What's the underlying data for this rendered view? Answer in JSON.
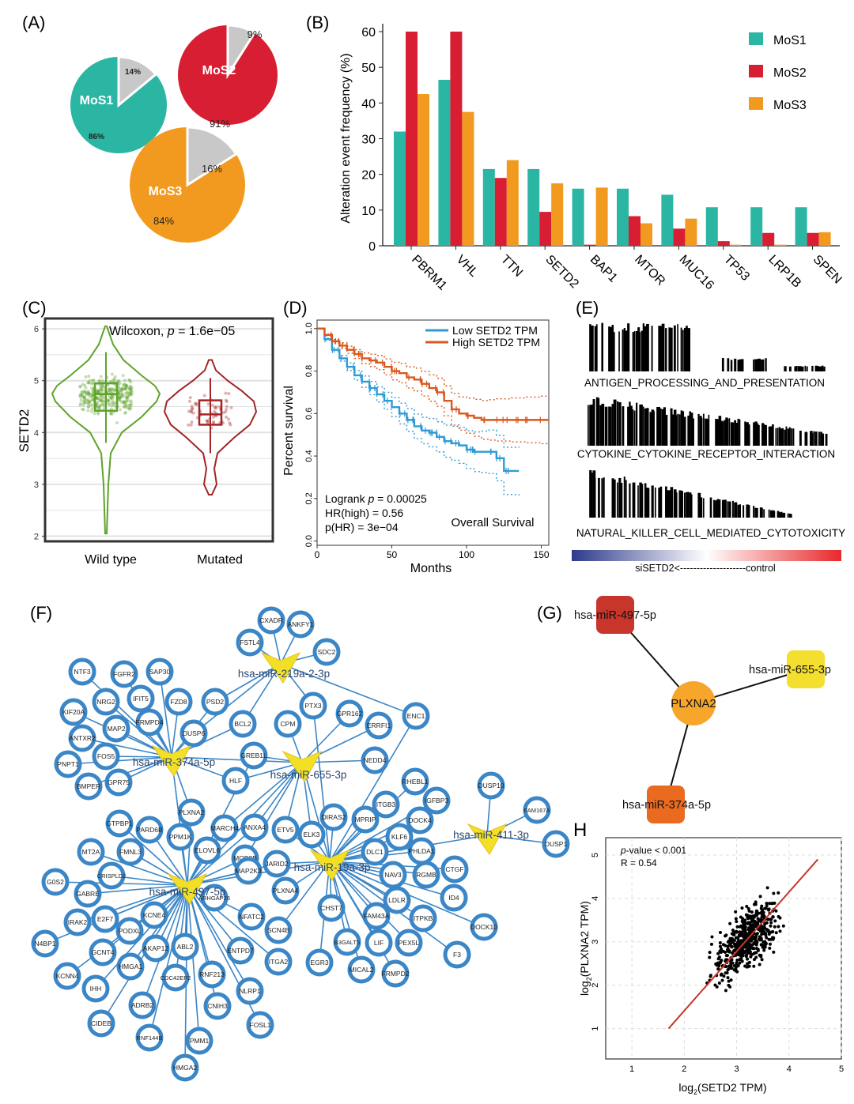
{
  "panels": {
    "a": "(A)",
    "b": "(B)",
    "c": "(C)",
    "d": "(D)",
    "e": "(E)",
    "f": "(F)",
    "g": "(G)",
    "h": "H"
  },
  "colors": {
    "mos1": "#2bb5a3",
    "mos2": "#d81e32",
    "mos3": "#f29a1f",
    "grey": "#c8c8c8",
    "wt": "#5fa32a",
    "mut": "#a22525",
    "low": "#2f9bd5",
    "high": "#d9581f",
    "net": "#3b86c6",
    "hub": "#f2e027",
    "reg": "#c8352b"
  },
  "chart_data": [
    {
      "id": "A",
      "type": "pie",
      "pies": [
        {
          "name": "MoS1",
          "main_pct": "86%",
          "other_pct": "14%",
          "main": 86,
          "other": 14
        },
        {
          "name": "MoS2",
          "main_pct": "91%",
          "other_pct": "9%",
          "main": 91,
          "other": 9
        },
        {
          "name": "MoS3",
          "main_pct": "84%",
          "other_pct": "16%",
          "main": 84,
          "other": 16
        }
      ]
    },
    {
      "id": "B",
      "type": "bar",
      "categories": [
        "PBRM1",
        "VHL",
        "TTN",
        "SETD2",
        "BAP1",
        "MTOR",
        "MUC16",
        "TP53",
        "LRP1B",
        "SPEN"
      ],
      "series": [
        {
          "name": "MoS1",
          "values": [
            32,
            46.5,
            21.5,
            21.5,
            16,
            16,
            14.3,
            10.8,
            10.8,
            10.8
          ]
        },
        {
          "name": "MoS2",
          "values": [
            60,
            60,
            19,
            9.5,
            0.3,
            8.3,
            4.8,
            1.3,
            3.6,
            3.6
          ]
        },
        {
          "name": "MoS3",
          "values": [
            42.5,
            37.5,
            24,
            17.5,
            16.3,
            6.3,
            7.6,
            0.3,
            0.3,
            3.8
          ]
        }
      ],
      "ylabel": "Alteration event frequency (%)",
      "ylim": [
        0,
        62
      ],
      "yticks": [
        "0",
        "10",
        "20",
        "30",
        "40",
        "50",
        "60"
      ]
    },
    {
      "id": "C",
      "type": "violin",
      "groups": [
        "Wild type",
        "Mutated"
      ],
      "ylabel": "SETD2",
      "ylim": [
        1.9,
        6.2
      ],
      "yticks": [
        "2",
        "3",
        "4",
        "5",
        "6"
      ],
      "annotation_prefix": "Wilcoxon, ",
      "annotation_p": "p",
      "annotation_value": " = 1.6e−05",
      "box": [
        {
          "q1": 4.42,
          "median": 4.74,
          "q3": 4.95,
          "low": 3.8,
          "high": 5.55
        },
        {
          "q1": 4.15,
          "median": 4.35,
          "q3": 4.62,
          "low": 3.6,
          "high": 5.05
        }
      ]
    },
    {
      "id": "D",
      "type": "line",
      "xlabel": "Months",
      "ylabel": "Percent survival",
      "xticks": [
        "0",
        "50",
        "100",
        "150"
      ],
      "yticks": [
        "0.0",
        "0.2",
        "0.4",
        "0.6",
        "0.8",
        "1.0"
      ],
      "xlim": [
        0,
        155
      ],
      "ylim": [
        -0.02,
        1.04
      ],
      "legend": [
        "Low SETD2 TPM",
        "High SETD2 TPM"
      ],
      "series": [
        {
          "name": "Low SETD2 TPM",
          "x": [
            0,
            5,
            10,
            15,
            20,
            25,
            30,
            35,
            40,
            45,
            50,
            55,
            60,
            65,
            70,
            75,
            80,
            85,
            90,
            95,
            100,
            105,
            110,
            115,
            120,
            125,
            135
          ],
          "y": [
            1,
            0.95,
            0.9,
            0.86,
            0.82,
            0.78,
            0.75,
            0.72,
            0.69,
            0.66,
            0.63,
            0.6,
            0.57,
            0.54,
            0.52,
            0.51,
            0.49,
            0.47,
            0.46,
            0.45,
            0.43,
            0.42,
            0.42,
            0.42,
            0.39,
            0.33,
            0.33
          ]
        },
        {
          "name": "High SETD2 TPM",
          "x": [
            0,
            5,
            10,
            15,
            20,
            25,
            30,
            35,
            40,
            45,
            50,
            55,
            60,
            65,
            70,
            75,
            80,
            85,
            90,
            95,
            100,
            105,
            110,
            115,
            120,
            130,
            140,
            150,
            155
          ],
          "y": [
            1,
            0.97,
            0.94,
            0.92,
            0.9,
            0.88,
            0.86,
            0.85,
            0.84,
            0.82,
            0.8,
            0.79,
            0.77,
            0.76,
            0.74,
            0.72,
            0.7,
            0.66,
            0.62,
            0.6,
            0.59,
            0.58,
            0.57,
            0.57,
            0.57,
            0.57,
            0.57,
            0.57,
            0.57
          ]
        }
      ],
      "stats": {
        "logrank_prefix": "Logrank ",
        "logrank_p": "p",
        "logrank_value": " = 0.00025",
        "hr": "HR(high) = 0.56",
        "phr": "p(HR) = 3e−04"
      },
      "title": "Overall Survival"
    },
    {
      "id": "E",
      "type": "gsea",
      "pathways": [
        "ANTIGEN_PROCESSING_AND_PRESENTATION",
        "CYTOKINE_CYTOKINE_RECEPTOR_INTERACTION",
        "NATURAL_KILLER_CELL_MEDIATED_CYTOTOXICITY"
      ],
      "scale_label": "siSETD2<--------------------control"
    },
    {
      "id": "F",
      "type": "network",
      "hubs": [
        "hsa-miR-219a-2-3p",
        "hsa-miR-374a-5p",
        "hsa-miR-655-3p",
        "hsa-miR-411-3p",
        "hsa-miR-19a-3p",
        "hsa-miR-497-5p"
      ],
      "genes": [
        "CXADR",
        "ANKFY1",
        "FSTL4",
        "SDC2",
        "NTF3",
        "FGFR2",
        "SAP30",
        "IFIT5",
        "NRG2",
        "FZD8",
        "KIF20A",
        "PSD2",
        "MAP2",
        "FRMPD4",
        "DUSP6",
        "BCL2",
        "PTX3",
        "GPR162",
        "CPM",
        "ERRFI1",
        "ENC1",
        "ANTXR2",
        "FOS5",
        "PNPT1",
        "BMPER",
        "GPR75",
        "GREB1L",
        "NEDD4",
        "HLF",
        "RHEBL1",
        "DUSP10",
        "IGFBP3",
        "ITGB3",
        "FAM167A",
        "PLXNA2",
        "GTPBP1",
        "PARD6B",
        "MARCH4",
        "ANXA4",
        "ETV5",
        "DIRAS2",
        "MPRIP",
        "DOCK4",
        "PPM1K",
        "ELK3",
        "KLF6",
        "MT2A",
        "FMNL3",
        "ELOVL6",
        "MOB3B",
        "JARID2",
        "DLC1",
        "PHLDA1",
        "DUSP1",
        "CRISPLD2",
        "MAP2K3",
        "NAV3",
        "RGMB",
        "CTGF",
        "G0S2",
        "GABRE",
        "PLXNA4",
        "LDLR",
        "ID4",
        "IRAK2",
        "E2F7",
        "KCNE4",
        "ARHGAP26",
        "NFATC2",
        "CHST7",
        "FAM43A",
        "ITPKB",
        "DOCK10",
        "PODXL",
        "SCN4B",
        "N4BP1",
        "GCNT4",
        "AKAP12",
        "ABL2",
        "ENTPD7",
        "ITGA2",
        "EGR3",
        "B3GALT5",
        "LIF",
        "PEX5L",
        "F3",
        "KCNN4",
        "HMGA1",
        "CDC42EP2",
        "RNF213",
        "MICAL2",
        "FRMPD2",
        "IHH",
        "CNIH3",
        "NLRP1",
        "ADRB2",
        "FOSL1",
        "CIDEB",
        "RNF144B",
        "PMM1",
        "HMGA2"
      ]
    },
    {
      "id": "G",
      "type": "network",
      "center": "PLXNA2",
      "mirnas": [
        "hsa-miR-497-5p",
        "hsa-miR-655-3p",
        "hsa-miR-374a-5p"
      ]
    },
    {
      "id": "H",
      "type": "scatter",
      "xlabel_pre": "log",
      "xlabel_sub": "2",
      "xlabel_post": "(SETD2 TPM)",
      "ylabel_pre": "log",
      "ylabel_sub": "2",
      "ylabel_post": "(PLXNA2 TPM)",
      "xticks": [
        "1",
        "2",
        "3",
        "4",
        "5"
      ],
      "yticks": [
        "1",
        "2",
        "3",
        "4",
        "5"
      ],
      "xlim": [
        0.5,
        5
      ],
      "ylim": [
        0.3,
        5.4
      ],
      "stat_p": "p",
      "stat_p_rest": "-value < 0.001",
      "stat_r": "R = 0.54",
      "fit": {
        "x0": 1.7,
        "y0": 1,
        "x1": 4.55,
        "y1": 4.9
      }
    }
  ]
}
